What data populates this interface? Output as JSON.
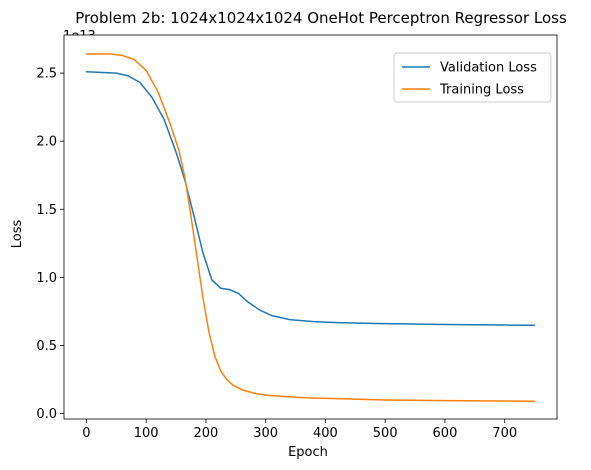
{
  "chart_data": {
    "type": "line",
    "title": "Problem 2b: 1024x1024x1024 OneHot Perceptron Regressor Loss",
    "xlabel": "Epoch",
    "ylabel": "Loss",
    "y_offset_text": "1e13",
    "xlim": [
      -37.5,
      787.5
    ],
    "ylim": [
      -0.04,
      2.78
    ],
    "x_ticks": [
      0,
      100,
      200,
      300,
      400,
      500,
      600,
      700
    ],
    "x_tick_labels": [
      "0",
      "100",
      "200",
      "300",
      "400",
      "500",
      "600",
      "700"
    ],
    "y_ticks": [
      0.0,
      0.5,
      1.0,
      1.5,
      2.0,
      2.5
    ],
    "y_tick_labels": [
      "0.0",
      "0.5",
      "1.0",
      "1.5",
      "2.0",
      "2.5"
    ],
    "grid": false,
    "legend_position": "upper-right",
    "series": [
      {
        "name": "Validation Loss",
        "color": "#1f77b4",
        "x": [
          0,
          50,
          70,
          90,
          110,
          130,
          150,
          165,
          180,
          195,
          210,
          225,
          240,
          255,
          270,
          290,
          310,
          340,
          380,
          420,
          500,
          600,
          700,
          750
        ],
        "y": [
          2.51,
          2.5,
          2.48,
          2.43,
          2.32,
          2.16,
          1.92,
          1.71,
          1.45,
          1.18,
          0.98,
          0.92,
          0.91,
          0.88,
          0.82,
          0.76,
          0.72,
          0.69,
          0.675,
          0.668,
          0.66,
          0.654,
          0.65,
          0.648
        ]
      },
      {
        "name": "Training Loss",
        "color": "#ff7f0e",
        "x": [
          0,
          40,
          60,
          80,
          100,
          120,
          140,
          155,
          165,
          175,
          185,
          195,
          205,
          215,
          225,
          235,
          245,
          260,
          280,
          300,
          330,
          370,
          420,
          500,
          600,
          700,
          750
        ],
        "y": [
          2.64,
          2.64,
          2.63,
          2.6,
          2.52,
          2.36,
          2.13,
          1.93,
          1.73,
          1.45,
          1.15,
          0.85,
          0.6,
          0.42,
          0.31,
          0.25,
          0.21,
          0.175,
          0.15,
          0.135,
          0.125,
          0.115,
          0.11,
          0.1,
          0.095,
          0.092,
          0.09
        ]
      }
    ]
  }
}
